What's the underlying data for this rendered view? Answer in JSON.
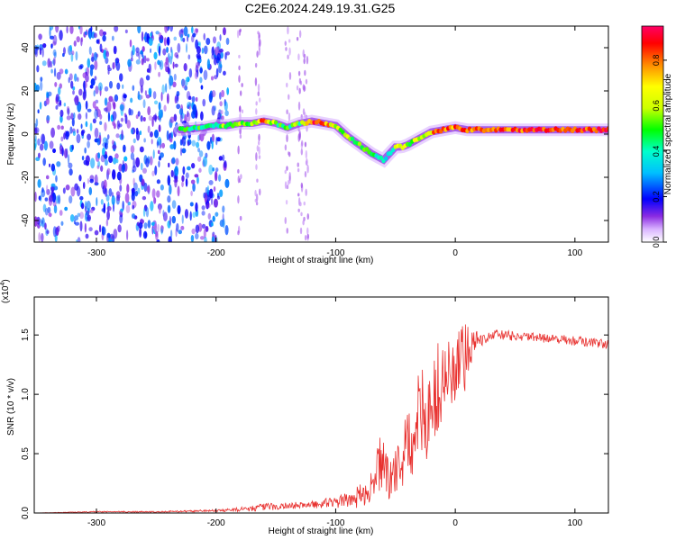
{
  "figure_title": "C2E6.2024.249.19.31.G25",
  "chart_data": [
    {
      "type": "heatmap",
      "title": "C2E6.2024.249.19.31.G25",
      "xlabel": "Height of straight line (km)",
      "ylabel": "Frequency (Hz)",
      "xlim": [
        -352,
        128
      ],
      "ylim": [
        -50,
        50
      ],
      "xticks": [
        -300,
        -200,
        -100,
        0,
        100
      ],
      "xtick_labels": [
        "-300",
        "-200",
        "-100",
        "0",
        "100"
      ],
      "yticks": [
        -40,
        -20,
        0,
        20,
        40
      ],
      "ytick_labels": [
        "-40",
        "-20",
        "0",
        "20",
        "40"
      ],
      "colorbar": {
        "label": "Normalized spectral amplitude",
        "range": [
          0,
          0.95
        ],
        "ticks": [
          0.0,
          0.2,
          0.4,
          0.6,
          0.8
        ],
        "tick_labels": [
          "0.0",
          "0.2",
          "0.4",
          "0.6",
          "0.8"
        ],
        "colors": [
          "#ffffff",
          "#d9b3ff",
          "#8a2be2",
          "#0000ff",
          "#00bfff",
          "#00ffcc",
          "#00ff00",
          "#ccff00",
          "#ffff00",
          "#ff8c00",
          "#ff0000",
          "#ff0066"
        ]
      },
      "ridge": {
        "x": [
          -230,
          -210,
          -200,
          -190,
          -180,
          -170,
          -160,
          -150,
          -140,
          -130,
          -120,
          -110,
          -100,
          -90,
          -80,
          -70,
          -60,
          -50,
          -45,
          -40,
          -30,
          -20,
          -10,
          0,
          10,
          20,
          40,
          60,
          80,
          100,
          128
        ],
        "y": [
          2,
          3,
          4,
          4,
          5,
          5,
          6,
          5,
          3,
          5,
          6,
          5,
          4,
          -1,
          -5,
          -9,
          -12,
          -6,
          -6,
          -5,
          -2,
          1,
          2,
          3,
          2,
          2,
          2,
          2,
          2,
          2,
          2
        ],
        "amplitude": [
          0.5,
          0.45,
          0.5,
          0.55,
          0.55,
          0.6,
          0.85,
          0.55,
          0.5,
          0.55,
          0.9,
          0.85,
          0.65,
          0.6,
          0.5,
          0.45,
          0.45,
          0.55,
          0.7,
          0.6,
          0.65,
          0.75,
          0.85,
          0.85,
          0.9,
          0.8,
          0.85,
          0.85,
          0.9,
          0.9,
          0.9
        ]
      },
      "noise_region": {
        "x": [
          -352,
          -190
        ],
        "amplitude": [
          0.1,
          0.35
        ]
      },
      "noise_streaks": [
        -180,
        -165,
        -140,
        -130,
        -125
      ]
    },
    {
      "type": "line",
      "xlabel": "Height of straight line (km)",
      "ylabel": "SNR (10 * v/v)",
      "multiplier": "(x10",
      "multiplier_exp": "4",
      "multiplier_close": ")",
      "xlim": [
        -352,
        128
      ],
      "ylim": [
        0,
        1.82
      ],
      "xticks": [
        -300,
        -200,
        -100,
        0,
        100
      ],
      "xtick_labels": [
        "-300",
        "-200",
        "-100",
        "0",
        "100"
      ],
      "yticks": [
        0,
        0.5,
        1.0,
        1.5
      ],
      "ytick_labels": [
        "0.0",
        "0.5",
        "1.0",
        "1.5"
      ],
      "series": [
        {
          "color": "#e8312f",
          "x": [
            -352,
            -300,
            -250,
            -200,
            -180,
            -160,
            -140,
            -120,
            -100,
            -90,
            -80,
            -70,
            -62,
            -55,
            -50,
            -40,
            -30,
            -20,
            -10,
            0,
            10,
            15,
            20,
            30,
            40,
            60,
            80,
            100,
            128
          ],
          "y": [
            0.0,
            0.01,
            0.01,
            0.02,
            0.03,
            0.05,
            0.06,
            0.07,
            0.09,
            0.11,
            0.14,
            0.22,
            0.45,
            0.25,
            0.35,
            0.55,
            0.8,
            0.9,
            1.1,
            1.2,
            1.3,
            1.5,
            1.45,
            1.5,
            1.5,
            1.48,
            1.47,
            1.45,
            1.42
          ],
          "noise": [
            0.0,
            0.005,
            0.005,
            0.01,
            0.02,
            0.03,
            0.03,
            0.03,
            0.05,
            0.06,
            0.1,
            0.12,
            0.25,
            0.15,
            0.2,
            0.3,
            0.4,
            0.45,
            0.4,
            0.35,
            0.3,
            0.15,
            0.06,
            0.04,
            0.04,
            0.04,
            0.04,
            0.04,
            0.04
          ]
        }
      ]
    }
  ]
}
